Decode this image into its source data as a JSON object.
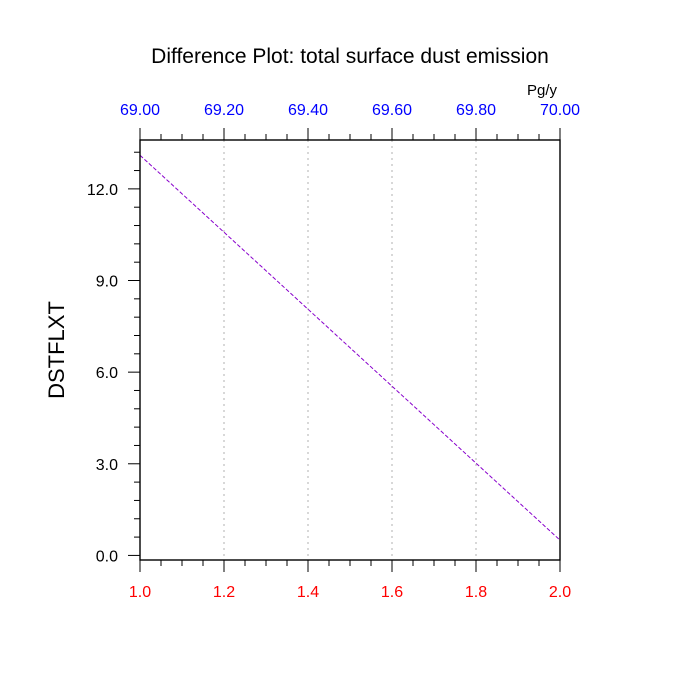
{
  "chart_data": {
    "type": "line",
    "title": "Difference Plot: total surface dust emission",
    "ylabel": "DSTFLXT",
    "top_axis_unit": "Pg/y",
    "xlim": [
      1.0,
      2.0
    ],
    "ylim": [
      -0.15,
      13.6
    ],
    "x_ticks": [
      "1.0",
      "1.2",
      "1.4",
      "1.6",
      "1.8",
      "2.0"
    ],
    "top_ticks": [
      "69.00",
      "69.20",
      "69.40",
      "69.60",
      "69.80",
      "70.00"
    ],
    "y_ticks": [
      "0.0",
      "3.0",
      "6.0",
      "9.0",
      "12.0"
    ],
    "grid": "vertical dotted gridlines",
    "series": [
      {
        "x": [
          1.0,
          2.0
        ],
        "y": [
          13.1,
          0.5
        ],
        "color": "#8800cc",
        "style": "dashed"
      }
    ],
    "colors": {
      "bottom_axis": "#ff0000",
      "top_axis": "#0000ff",
      "line": "#8800cc"
    }
  }
}
